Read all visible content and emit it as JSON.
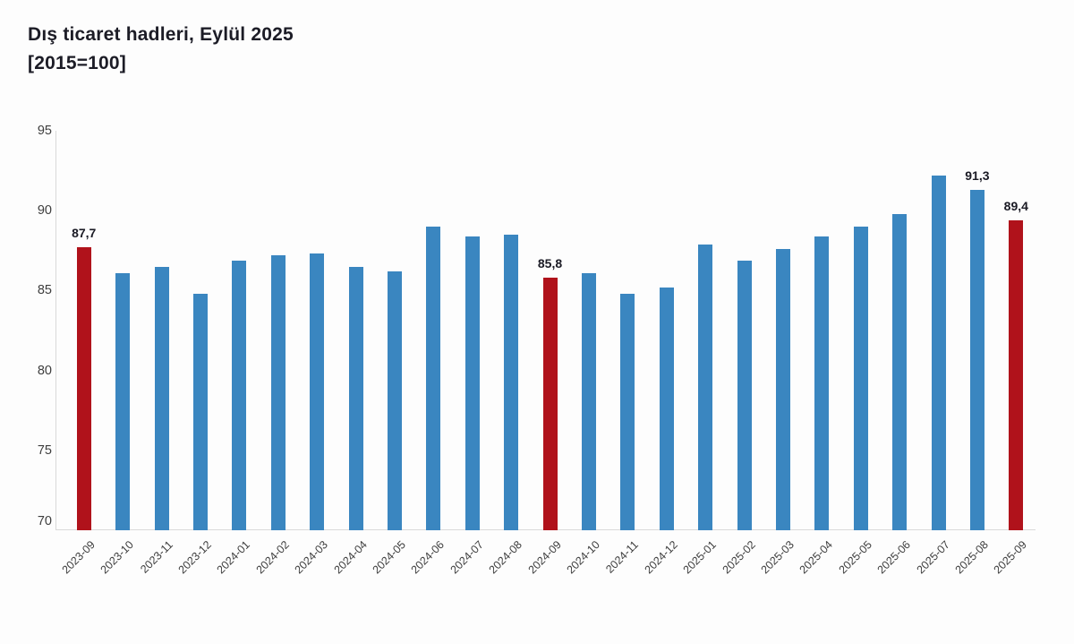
{
  "page": {
    "background": "#fdfdfd"
  },
  "header": {
    "title": "Dış ticaret hadleri, Eylül 2025",
    "subtitle": "[2015=100]"
  },
  "chart_data": {
    "type": "bar",
    "title": "Dış ticaret hadleri, Eylül 2025",
    "subtitle": "[2015=100]",
    "categories": [
      "2023-09",
      "2023-10",
      "2023-11",
      "2023-12",
      "2024-01",
      "2024-02",
      "2024-03",
      "2024-04",
      "2024-05",
      "2024-06",
      "2024-07",
      "2024-08",
      "2024-09",
      "2024-10",
      "2024-11",
      "2024-12",
      "2025-01",
      "2025-02",
      "2025-03",
      "2025-04",
      "2025-05",
      "2025-06",
      "2025-07",
      "2025-08",
      "2025-09"
    ],
    "values": [
      87.7,
      86.1,
      86.5,
      84.8,
      86.9,
      87.2,
      87.3,
      86.5,
      86.2,
      89.0,
      88.4,
      88.5,
      85.8,
      86.1,
      84.8,
      85.2,
      87.9,
      86.9,
      87.6,
      88.4,
      89.0,
      89.8,
      92.2,
      91.3,
      89.4
    ],
    "highlight_indices": [
      0,
      12,
      24
    ],
    "data_labels": [
      {
        "index": 0,
        "text": "87,7"
      },
      {
        "index": 12,
        "text": "85,8"
      },
      {
        "index": 23,
        "text": "91,3"
      },
      {
        "index": 24,
        "text": "89,4"
      }
    ],
    "colors": {
      "bar": "#3A86C0",
      "highlight": "#B0121B"
    },
    "ylim": [
      70,
      95
    ],
    "yticks": [
      70,
      75,
      80,
      85,
      90,
      95
    ],
    "xlabel": "",
    "ylabel": "",
    "grid": false,
    "legend": "none"
  }
}
